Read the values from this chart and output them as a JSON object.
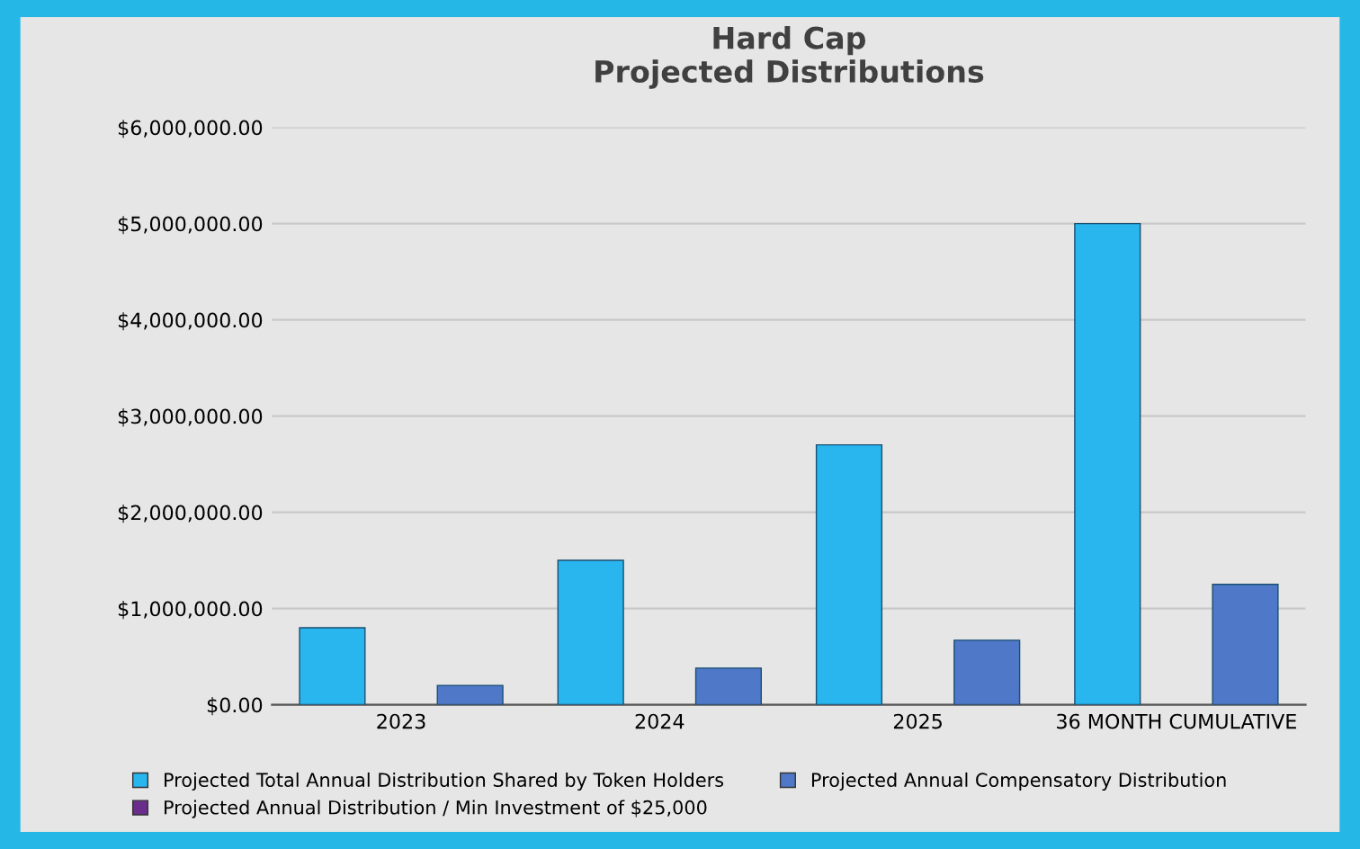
{
  "chart_data": {
    "type": "bar",
    "title": "Hard Cap\nProjected Distributions",
    "categories": [
      "2023",
      "2024",
      "2025",
      "36 MONTH CUMULATIVE"
    ],
    "series": [
      {
        "name": "Projected Total Annual Distribution Shared by Token Holders",
        "color": "#29b5ee",
        "values": [
          800000,
          1500000,
          2700000,
          5000000
        ]
      },
      {
        "name": "Projected Annual Distribution / Min Investment of $25,000",
        "color": "#6a2d8c",
        "values": [
          null,
          null,
          null,
          null
        ]
      },
      {
        "name": "Projected Annual Compensatory Distribution",
        "color": "#4f78c8",
        "values": [
          200000,
          380000,
          670000,
          1250000
        ]
      }
    ],
    "ylim": [
      0,
      6000000
    ],
    "yticks": [
      {
        "value": 0,
        "label": "$0.00"
      },
      {
        "value": 1000000,
        "label": "$1,000,000.00"
      },
      {
        "value": 2000000,
        "label": "$2,000,000.00"
      },
      {
        "value": 3000000,
        "label": "$3,000,000.00"
      },
      {
        "value": 4000000,
        "label": "$4,000,000.00"
      },
      {
        "value": 5000000,
        "label": "$5,000,000.00"
      },
      {
        "value": 6000000,
        "label": "$6,000,000.00"
      }
    ],
    "grid": "y",
    "legend": "bottom"
  }
}
